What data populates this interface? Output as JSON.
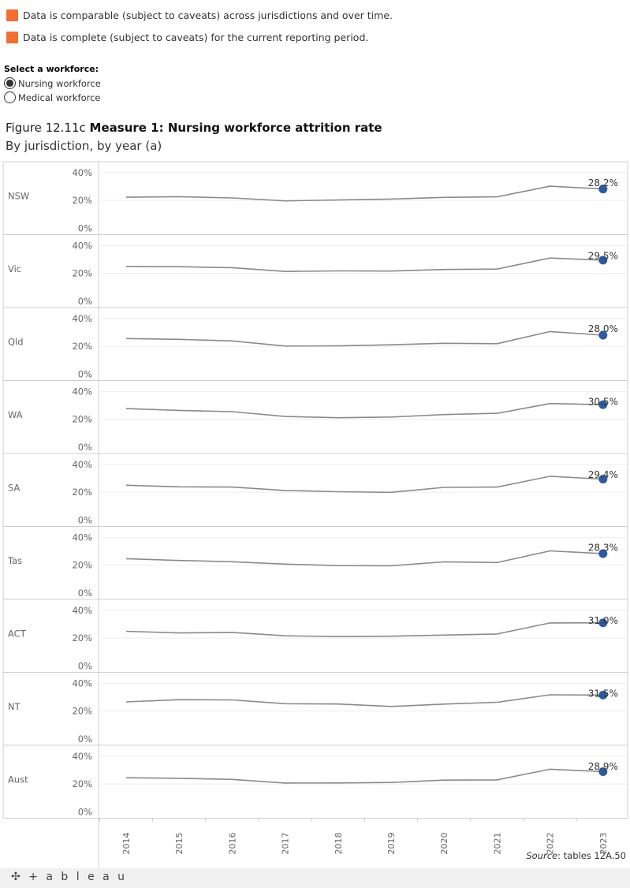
{
  "legend": {
    "items": [
      {
        "label": "Data is comparable (subject to caveats) across jurisdictions and over time.",
        "color": "#f26e31"
      },
      {
        "label": "Data is complete (subject to caveats) for the current reporting period.",
        "color": "#f26e31"
      }
    ]
  },
  "selector": {
    "title": "Select a workforce:",
    "options": [
      {
        "label": "Nursing workforce",
        "selected": true
      },
      {
        "label": "Medical workforce",
        "selected": false
      }
    ]
  },
  "figure": {
    "number": "Figure 12.11c",
    "title": "Measure 1: Nursing workforce attrition rate",
    "subtitle": "By jurisdiction, by year (a)"
  },
  "chart_data": {
    "type": "line",
    "x": [
      "2014",
      "2015",
      "2016",
      "2017",
      "2018",
      "2019",
      "2020",
      "2021",
      "2022",
      "2023"
    ],
    "y_ticks": [
      "40%",
      "20%",
      "0%"
    ],
    "ylim": [
      0,
      45
    ],
    "grid": true,
    "line_color": "#8a8a8a",
    "marker_color": "#2e5b9c",
    "panels": [
      {
        "label": "NSW",
        "values": [
          22.3,
          22.7,
          21.8,
          19.7,
          20.3,
          21.0,
          22.2,
          22.6,
          30.2,
          28.2
        ],
        "last_label": "28.2%"
      },
      {
        "label": "Vic",
        "values": [
          25.0,
          24.8,
          24.1,
          21.4,
          21.8,
          21.7,
          22.8,
          23.1,
          31.0,
          29.5
        ],
        "last_label": "29.5%"
      },
      {
        "label": "Qld",
        "values": [
          25.6,
          25.0,
          23.9,
          20.2,
          20.3,
          21.1,
          22.2,
          21.9,
          30.6,
          28.0
        ],
        "last_label": "28.0%"
      },
      {
        "label": "WA",
        "values": [
          27.7,
          26.4,
          25.5,
          22.0,
          21.1,
          21.6,
          23.4,
          24.3,
          31.3,
          30.5
        ],
        "last_label": "30.5%"
      },
      {
        "label": "SA",
        "values": [
          25.0,
          23.9,
          23.7,
          21.3,
          20.4,
          19.9,
          23.5,
          23.7,
          31.5,
          29.4
        ],
        "last_label": "29.4%"
      },
      {
        "label": "Tas",
        "values": [
          24.7,
          23.4,
          22.5,
          20.8,
          19.7,
          19.6,
          22.4,
          21.9,
          30.3,
          28.3
        ],
        "last_label": "28.3%"
      },
      {
        "label": "ACT",
        "values": [
          24.9,
          23.7,
          24.1,
          21.7,
          21.1,
          21.4,
          22.2,
          23.0,
          30.9,
          31.0
        ],
        "last_label": "31.0%"
      },
      {
        "label": "NT",
        "values": [
          26.6,
          28.2,
          28.0,
          25.3,
          25.1,
          23.3,
          25.0,
          26.3,
          31.7,
          31.5
        ],
        "last_label": "31.5%"
      },
      {
        "label": "Aust",
        "values": [
          24.5,
          24.1,
          23.3,
          20.7,
          20.8,
          21.1,
          22.8,
          23.0,
          30.6,
          28.9
        ],
        "last_label": "28.9%"
      }
    ]
  },
  "source": {
    "prefix": "Source",
    "text": ": tables 12A.50"
  },
  "footer": {
    "logo_text": "+ a b l e a u"
  }
}
